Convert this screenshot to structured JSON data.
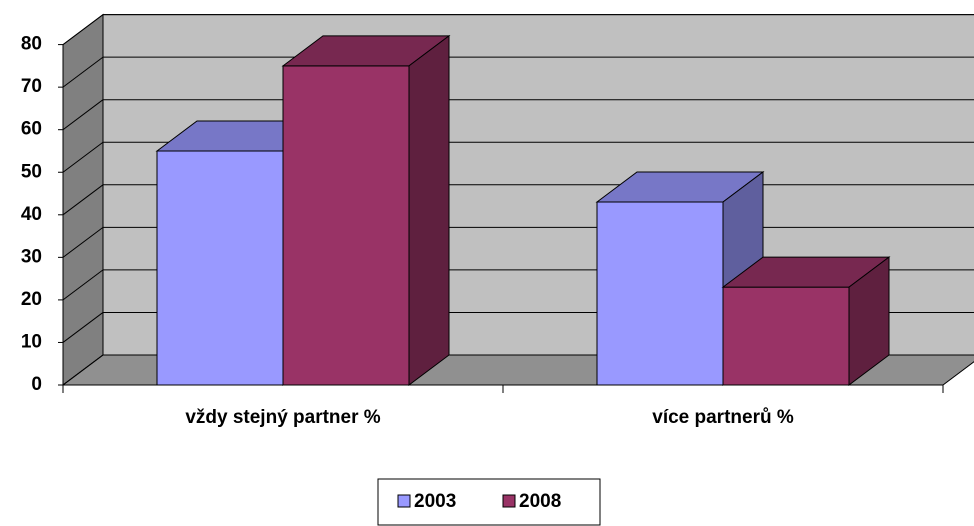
{
  "chart_data": {
    "type": "bar3d",
    "categories": [
      "vždy stejný partner %",
      "více partnerů %"
    ],
    "series": [
      {
        "name": "2003",
        "color": "#9999ff",
        "values": [
          55,
          43
        ]
      },
      {
        "name": "2008",
        "color": "#993366",
        "values": [
          75,
          23
        ]
      }
    ],
    "ylim": [
      0,
      80
    ],
    "yticks": [
      0,
      10,
      20,
      30,
      40,
      50,
      60,
      70,
      80
    ],
    "grid": true,
    "legend": "bottom"
  }
}
